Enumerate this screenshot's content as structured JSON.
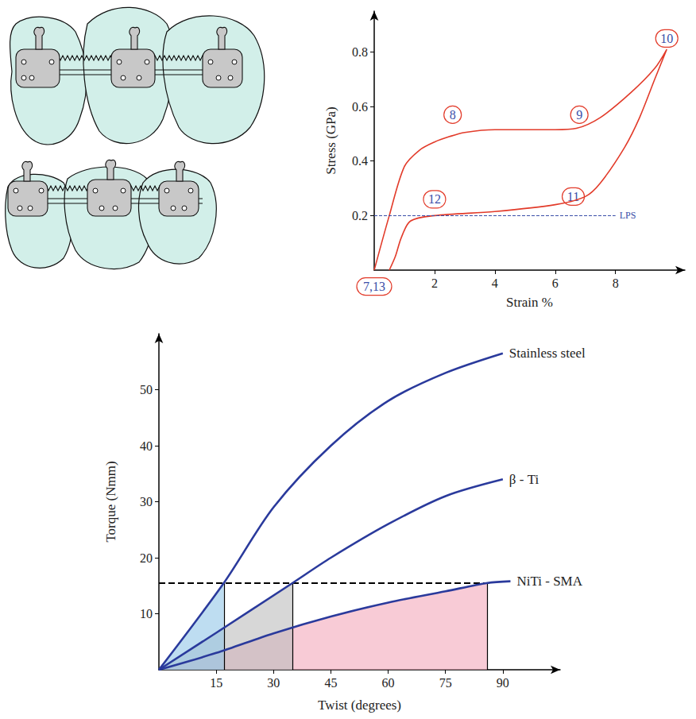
{
  "chart_data": [
    {
      "type": "line",
      "xlabel": "Strain %",
      "ylabel": "Stress (GPa)",
      "x": [
        0,
        0.5,
        1,
        1.5,
        2,
        2.5,
        3,
        4,
        5,
        6,
        6.7,
        7.5,
        8.5,
        9.3,
        9.7,
        9.3,
        8.8,
        8.3,
        7.5,
        7,
        6,
        4,
        2,
        1.2,
        0.9,
        0.7,
        0.5
      ],
      "values": [
        0,
        0.2,
        0.38,
        0.44,
        0.47,
        0.49,
        0.505,
        0.515,
        0.515,
        0.515,
        0.52,
        0.56,
        0.65,
        0.74,
        0.81,
        0.7,
        0.56,
        0.45,
        0.32,
        0.27,
        0.24,
        0.215,
        0.2,
        0.18,
        0.12,
        0.05,
        0
      ],
      "color": "#e23b2a",
      "xlim": [
        0,
        10.3
      ],
      "ylim": [
        0,
        0.95
      ],
      "xticks": [
        2,
        4,
        6,
        8
      ],
      "yticks": [
        0.2,
        0.4,
        0.6,
        0.8
      ],
      "grid": false,
      "annotations": [
        {
          "text": "7,13",
          "x": 0,
          "y": -0.06
        },
        {
          "text": "8",
          "x": 2.6,
          "y": 0.57
        },
        {
          "text": "9",
          "x": 6.8,
          "y": 0.57
        },
        {
          "text": "10",
          "x": 9.7,
          "y": 0.85
        },
        {
          "text": "11",
          "x": 6.6,
          "y": 0.27
        },
        {
          "text": "12",
          "x": 2.0,
          "y": 0.26
        }
      ],
      "reference_lines": [
        {
          "y": 0.2,
          "x_start": 0,
          "x_end": 8,
          "label": "LPS"
        }
      ]
    },
    {
      "type": "line",
      "xlabel": "Twist (degrees)",
      "ylabel": "Torque (Nmm)",
      "series": [
        {
          "name": "Stainless steel",
          "color": "#2a3a9c",
          "x": [
            0,
            17,
            30,
            45,
            60,
            75,
            90
          ],
          "values": [
            0,
            15.5,
            29,
            40,
            48,
            53,
            56.5
          ]
        },
        {
          "name": "β - Ti",
          "color": "#2a3a9c",
          "x": [
            0,
            15,
            35,
            45,
            60,
            75,
            90
          ],
          "values": [
            0,
            6.6,
            15.5,
            20,
            26,
            31,
            34
          ]
        },
        {
          "name": "NiTi - SMA",
          "color": "#2a3a9c",
          "x": [
            0,
            15,
            30,
            45,
            60,
            75,
            86,
            92
          ],
          "values": [
            0,
            3,
            6.5,
            9.5,
            12,
            14,
            15.5,
            15.8
          ]
        }
      ],
      "xlim": [
        0,
        105
      ],
      "ylim": [
        0,
        60
      ],
      "xticks": [
        15,
        30,
        45,
        60,
        75,
        90
      ],
      "yticks": [
        10,
        20,
        30,
        40,
        50
      ],
      "grid": false,
      "reference_lines": [
        {
          "y": 15.5,
          "x_start": 0,
          "x_end": 87,
          "line_style": "dashed"
        }
      ],
      "shaded_areas": [
        {
          "series": "NiTi - SMA",
          "x_end": 86,
          "color": "#f3a9bb"
        },
        {
          "series": "β - Ti",
          "x_end": 35,
          "color": "#bdbdbd"
        },
        {
          "series": "Stainless steel",
          "x_end": 17,
          "color": "#93c6e8"
        }
      ]
    }
  ]
}
